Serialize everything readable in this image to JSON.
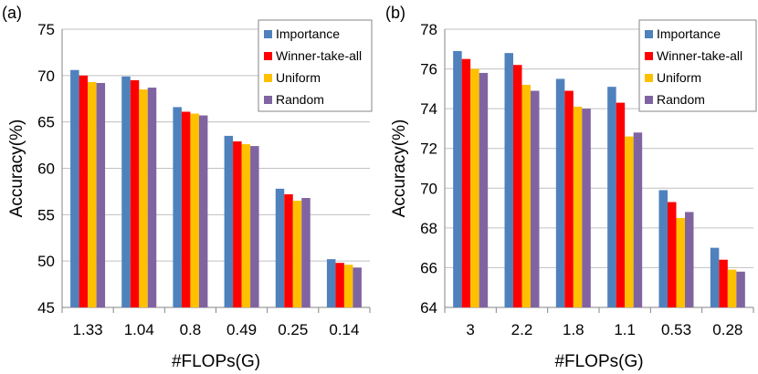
{
  "colors": {
    "Importance": "#4F81BD",
    "Winner-take-all": "#FF0000",
    "Uniform": "#FFC000",
    "Random": "#8064A2"
  },
  "chart_data": [
    {
      "type": "bar",
      "panel_label": "(a)",
      "xlabel": "#FLOPs(G)",
      "ylabel": "Accuracy(%)",
      "ylim": [
        45,
        75
      ],
      "yticks": [
        45,
        50,
        55,
        60,
        65,
        70,
        75
      ],
      "grid": true,
      "legend_position": "top-right",
      "categories": [
        "1.33",
        "1.04",
        "0.8",
        "0.49",
        "0.25",
        "0.14"
      ],
      "series": [
        {
          "name": "Importance",
          "values": [
            70.6,
            69.9,
            66.6,
            63.5,
            57.8,
            50.2
          ]
        },
        {
          "name": "Winner-take-all",
          "values": [
            70.0,
            69.5,
            66.1,
            62.9,
            57.2,
            49.8
          ]
        },
        {
          "name": "Uniform",
          "values": [
            69.3,
            68.5,
            65.9,
            62.6,
            56.5,
            49.6
          ]
        },
        {
          "name": "Random",
          "values": [
            69.2,
            68.7,
            65.7,
            62.4,
            56.8,
            49.3
          ]
        }
      ]
    },
    {
      "type": "bar",
      "panel_label": "(b)",
      "xlabel": "#FLOPs(G)",
      "ylabel": "Accuracy(%)",
      "ylim": [
        64,
        78
      ],
      "yticks": [
        64,
        66,
        68,
        70,
        72,
        74,
        76,
        78
      ],
      "grid": true,
      "legend_position": "top-right",
      "categories": [
        "3",
        "2.2",
        "1.8",
        "1.1",
        "0.53",
        "0.28"
      ],
      "series": [
        {
          "name": "Importance",
          "values": [
            76.9,
            76.8,
            75.5,
            75.1,
            69.9,
            67.0
          ]
        },
        {
          "name": "Winner-take-all",
          "values": [
            76.5,
            76.2,
            74.9,
            74.3,
            69.3,
            66.4
          ]
        },
        {
          "name": "Uniform",
          "values": [
            76.0,
            75.2,
            74.1,
            72.6,
            68.5,
            65.9
          ]
        },
        {
          "name": "Random",
          "values": [
            75.8,
            74.9,
            74.0,
            72.8,
            68.8,
            65.8
          ]
        }
      ]
    }
  ]
}
